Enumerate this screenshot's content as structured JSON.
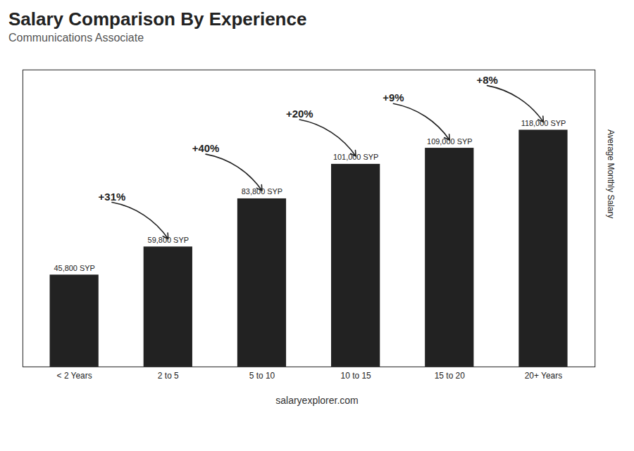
{
  "chart_data": {
    "type": "bar",
    "title": "Salary Comparison By Experience",
    "subtitle": "Communications Associate",
    "categories": [
      "< 2 Years",
      "2 to 5",
      "5 to 10",
      "10 to 15",
      "15 to 20",
      "20+ Years"
    ],
    "values": [
      45800,
      59800,
      83800,
      101000,
      109000,
      118000
    ],
    "value_labels": [
      "45,800 SYP",
      "59,800 SYP",
      "83,800 SYP",
      "101,000 SYP",
      "109,000 SYP",
      "118,000 SYP"
    ],
    "data_labels": true,
    "ylabel": "Average Monthly Salary",
    "ylim": [
      0,
      148000
    ],
    "tick_labels": "x",
    "grid": false,
    "annotations": [
      {
        "text": "+31%",
        "from": "< 2 Years",
        "to": "2 to 5"
      },
      {
        "text": "+40%",
        "from": "2 to 5",
        "to": "5 to 10"
      },
      {
        "text": "+20%",
        "from": "5 to 10",
        "to": "10 to 15"
      },
      {
        "text": "+9%",
        "from": "10 to 15",
        "to": "15 to 20"
      },
      {
        "text": "+8%",
        "from": "15 to 20",
        "to": "20+ Years"
      }
    ],
    "caption": "salaryexplorer.com"
  }
}
